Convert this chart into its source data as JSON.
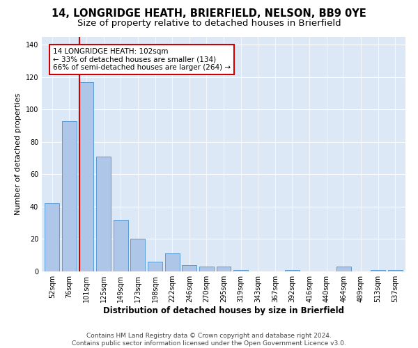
{
  "title": "14, LONGRIDGE HEATH, BRIERFIELD, NELSON, BB9 0YE",
  "subtitle": "Size of property relative to detached houses in Brierfield",
  "xlabel": "Distribution of detached houses by size in Brierfield",
  "ylabel": "Number of detached properties",
  "categories": [
    "52sqm",
    "76sqm",
    "101sqm",
    "125sqm",
    "149sqm",
    "173sqm",
    "198sqm",
    "222sqm",
    "246sqm",
    "270sqm",
    "295sqm",
    "319sqm",
    "343sqm",
    "367sqm",
    "392sqm",
    "416sqm",
    "440sqm",
    "464sqm",
    "489sqm",
    "513sqm",
    "537sqm"
  ],
  "values": [
    42,
    93,
    117,
    71,
    32,
    20,
    6,
    11,
    4,
    3,
    3,
    1,
    0,
    0,
    1,
    0,
    0,
    3,
    0,
    1,
    1
  ],
  "bar_color": "#aec6e8",
  "bar_edge_color": "#5b9bd5",
  "highlight_bar_index": 2,
  "highlight_line_color": "#cc0000",
  "annotation_line1": "14 LONGRIDGE HEATH: 102sqm",
  "annotation_line2": "← 33% of detached houses are smaller (134)",
  "annotation_line3": "66% of semi-detached houses are larger (264) →",
  "annotation_box_color": "#ffffff",
  "annotation_box_edge_color": "#cc0000",
  "ylim": [
    0,
    145
  ],
  "yticks": [
    0,
    20,
    40,
    60,
    80,
    100,
    120,
    140
  ],
  "background_color": "#dce8f5",
  "grid_color": "#ffffff",
  "figure_bg": "#ffffff",
  "footer_text": "Contains HM Land Registry data © Crown copyright and database right 2024.\nContains public sector information licensed under the Open Government Licence v3.0.",
  "title_fontsize": 10.5,
  "subtitle_fontsize": 9.5,
  "xlabel_fontsize": 8.5,
  "ylabel_fontsize": 8,
  "tick_fontsize": 7,
  "annotation_fontsize": 7.5,
  "footer_fontsize": 6.5
}
